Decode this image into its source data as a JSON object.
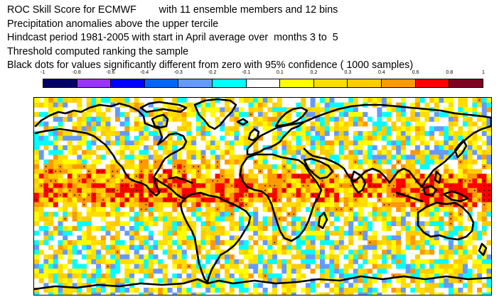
{
  "header": {
    "lines": [
      "ROC Skill Score for ECMWF        with 11 ensemble members and 12 bins",
      "Precipitation anomalies above the upper tercile",
      "Hindcast period 1981-2005 with start in April average over  months 3 to  5",
      "Threshold computed ranking the sample",
      "Black dots for values significantly different from zero with 95% confidence ( 1000 samples)"
    ]
  },
  "colorbar": {
    "ticks": [
      "-1",
      "-0.8",
      "-0.6",
      "-0.4",
      "-0.3",
      "-0.2",
      "-0.1",
      "0.1",
      "0.2",
      "0.3",
      "0.4",
      "0.6",
      "0.8",
      "1"
    ],
    "colors": [
      "#000066",
      "#9933ff",
      "#0000ff",
      "#0066ff",
      "#6699ff",
      "#00ffff",
      "#ffffff",
      "#ffff00",
      "#ffdd00",
      "#ffcc00",
      "#ff9900",
      "#ff0000",
      "#800020"
    ]
  },
  "map": {
    "projection": "global cylindrical",
    "overlay": "black dots for significant values"
  }
}
